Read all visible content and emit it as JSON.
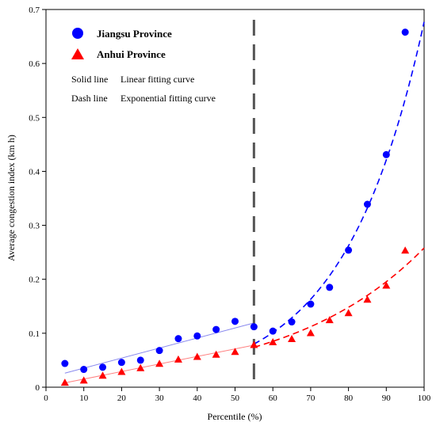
{
  "chart_data": {
    "type": "scatter",
    "xlabel": "Percentile (%)",
    "ylabel": "Average congestion index  (km h)",
    "xlim": [
      0,
      100
    ],
    "ylim": [
      0,
      0.7
    ],
    "x_ticks": [
      "0",
      "10",
      "20",
      "30",
      "40",
      "50",
      "60",
      "70",
      "80",
      "90",
      "100"
    ],
    "y_ticks": [
      "0",
      "0.1",
      "0.2",
      "0.3",
      "0.4",
      "0.5",
      "0.6",
      "0.7"
    ],
    "grid": false,
    "legend_position": "top-left",
    "series": [
      {
        "name": "Jiangsu Province",
        "color": "#0000ff",
        "marker": "circle",
        "x": [
          5,
          10,
          15,
          20,
          25,
          30,
          35,
          40,
          45,
          50,
          55,
          60,
          65,
          70,
          75,
          80,
          85,
          90,
          95
        ],
        "y": [
          0.044,
          0.033,
          0.037,
          0.046,
          0.05,
          0.068,
          0.09,
          0.095,
          0.107,
          0.122,
          0.112,
          0.104,
          0.121,
          0.154,
          0.185,
          0.254,
          0.339,
          0.431,
          0.658
        ]
      },
      {
        "name": "Anhui Province",
        "color": "#ff0000",
        "marker": "triangle",
        "x": [
          5,
          10,
          15,
          20,
          25,
          30,
          35,
          40,
          45,
          50,
          55,
          60,
          65,
          70,
          75,
          80,
          85,
          90,
          95
        ],
        "y": [
          0.008,
          0.012,
          0.021,
          0.028,
          0.035,
          0.043,
          0.051,
          0.056,
          0.06,
          0.065,
          0.078,
          0.083,
          0.089,
          0.1,
          0.124,
          0.137,
          0.162,
          0.188,
          0.253
        ]
      }
    ],
    "fits": [
      {
        "series": "Jiangsu Province",
        "style": "solid",
        "color": "#8888ee",
        "x": [
          5,
          55
        ],
        "y": [
          0.026,
          0.119
        ]
      },
      {
        "series": "Anhui Province",
        "style": "solid",
        "color": "#ff8080",
        "x": [
          5,
          55
        ],
        "y": [
          0.008,
          0.078
        ]
      },
      {
        "series": "Jiangsu Province",
        "style": "dash",
        "color": "#0000ff",
        "type": "exponential",
        "x": [
          55,
          100
        ],
        "y": [
          0.08,
          0.677
        ]
      },
      {
        "series": "Anhui Province",
        "style": "dash",
        "color": "#ff0000",
        "type": "exponential",
        "x": [
          55,
          100
        ],
        "y": [
          0.074,
          0.258
        ]
      }
    ],
    "divider": {
      "x": 55,
      "style": "dash",
      "color": "#555555"
    },
    "annotations": [
      {
        "left": "Solid line",
        "right": "Linear fitting curve"
      },
      {
        "left": "Dash line",
        "right": "Exponential fitting curve"
      }
    ]
  }
}
